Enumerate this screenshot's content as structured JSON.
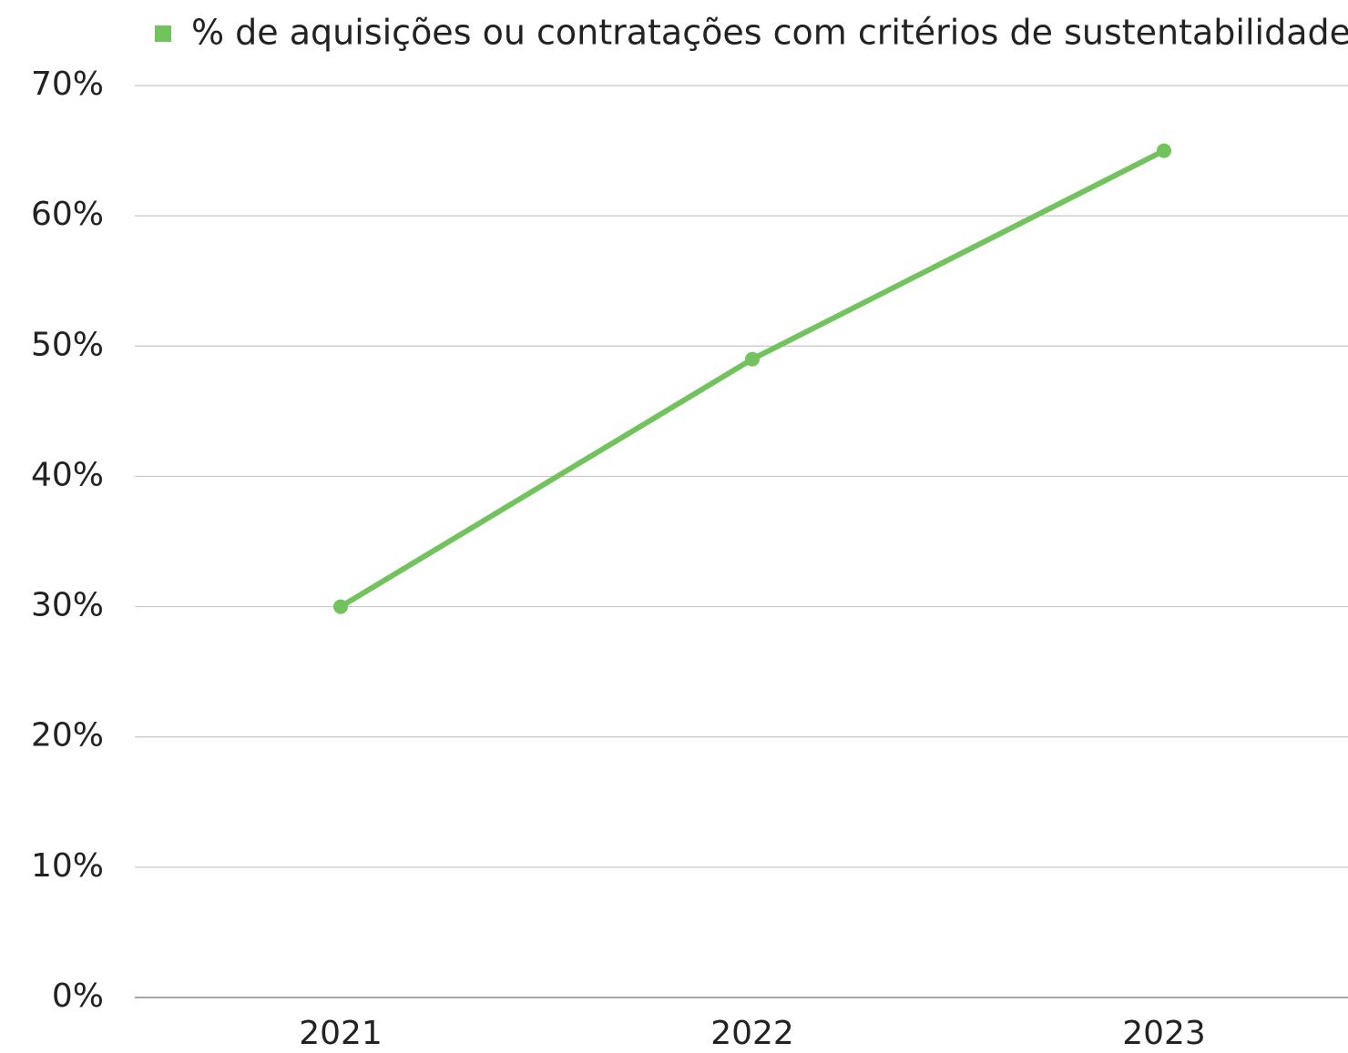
{
  "chart_data": {
    "type": "line",
    "categories": [
      "2021",
      "2022",
      "2023"
    ],
    "series": [
      {
        "name": "% de aquisições ou contratações com critérios de sustentabilidade",
        "color": "#72c25e",
        "values": [
          30,
          49,
          65
        ]
      }
    ],
    "ylim": [
      0,
      70
    ],
    "yticks": [
      {
        "value": 0,
        "label": "0%"
      },
      {
        "value": 10,
        "label": "10%"
      },
      {
        "value": 20,
        "label": "20%"
      },
      {
        "value": 30,
        "label": "30%"
      },
      {
        "value": 40,
        "label": "40%"
      },
      {
        "value": 50,
        "label": "50%"
      },
      {
        "value": 60,
        "label": "60%"
      },
      {
        "value": 70,
        "label": "70%"
      }
    ],
    "grid": true,
    "legend": "top"
  }
}
